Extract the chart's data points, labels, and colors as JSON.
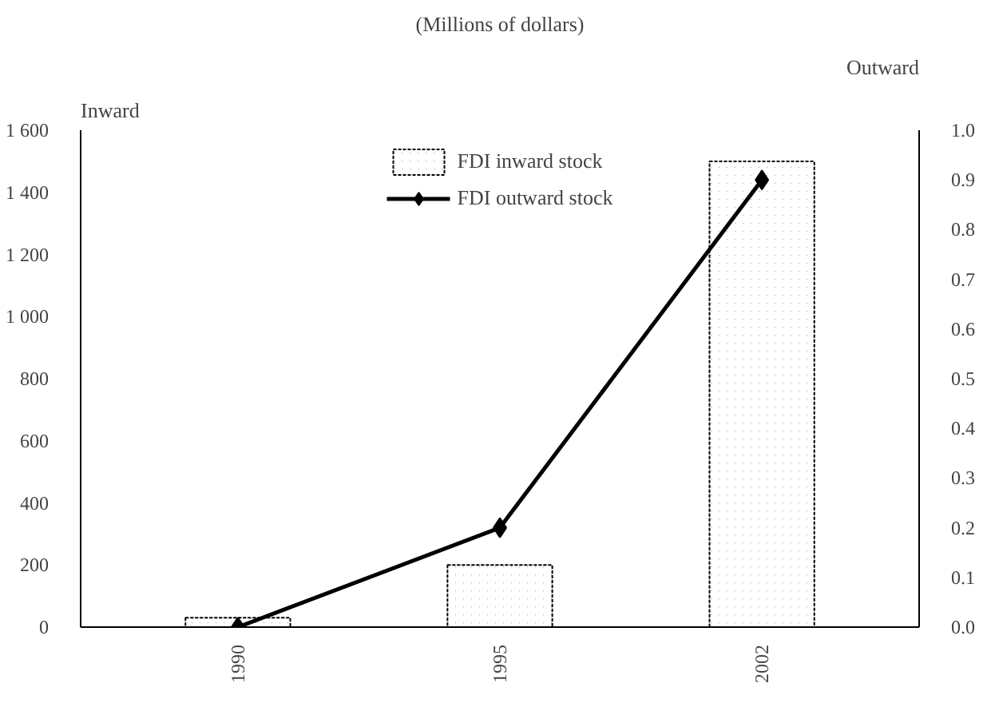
{
  "chart_data": {
    "type": "bar",
    "title": "(Millions of dollars)",
    "ylabel": "Inward",
    "y2label": "Outward",
    "categories": [
      "1990",
      "1995",
      "2002"
    ],
    "series": [
      {
        "name": "FDI inward stock",
        "color": "#000000",
        "values": [
          30,
          200,
          1500
        ]
      },
      {
        "name": "FDI outward stock",
        "type": "line",
        "axis": "y2",
        "color": "#000000",
        "marker": "diamond",
        "values": [
          0.0,
          0.2,
          0.9
        ]
      }
    ],
    "ylim": [
      0,
      1600
    ],
    "yticks": [
      0,
      {
        "value": 200,
        "label": "200"
      },
      {
        "value": 400,
        "label": "400"
      },
      {
        "value": 600,
        "label": "600"
      },
      {
        "value": 800,
        "label": "800"
      },
      {
        "value": 1000,
        "label": "1 000"
      },
      {
        "value": 1200,
        "label": "1 200"
      },
      {
        "value": 1400,
        "label": "1 400"
      },
      {
        "value": 1600,
        "label": "1 600"
      }
    ],
    "y2lim": [
      0,
      1.0
    ],
    "y2ticks": [
      {
        "value": 0,
        "label": "0.0"
      },
      0.1,
      0.2,
      0.3,
      0.4,
      0.5,
      0.6,
      0.7,
      0.8,
      0.9,
      {
        "value": 1,
        "label": "1.0"
      }
    ],
    "legend": "top",
    "grid": false
  }
}
